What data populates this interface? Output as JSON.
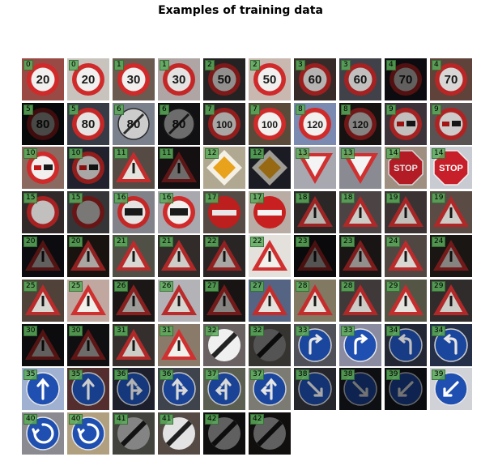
{
  "figure": {
    "title": "Examples of training data"
  },
  "samples": [
    {
      "label": "0",
      "sign": "speed-limit-20",
      "text": "20",
      "bg": "#9a4a44",
      "brightness": 1.0,
      "shape": "circle-red"
    },
    {
      "label": "0",
      "sign": "speed-limit-20",
      "text": "20",
      "bg": "#c9c3bd",
      "brightness": 1.0,
      "shape": "circle-red"
    },
    {
      "label": "1",
      "sign": "speed-limit-30",
      "text": "30",
      "bg": "#6a5a50",
      "brightness": 1.0,
      "shape": "circle-red"
    },
    {
      "label": "1",
      "sign": "speed-limit-30",
      "text": "30",
      "bg": "#b9aeae",
      "brightness": 0.95,
      "shape": "circle-red"
    },
    {
      "label": "2",
      "sign": "speed-limit-50",
      "text": "50",
      "bg": "#3d3a3a",
      "brightness": 0.6,
      "shape": "circle-red"
    },
    {
      "label": "2",
      "sign": "speed-limit-50",
      "text": "50",
      "bg": "#c8b8b0",
      "brightness": 1.0,
      "shape": "circle-red"
    },
    {
      "label": "3",
      "sign": "speed-limit-60",
      "text": "60",
      "bg": "#4a3a38",
      "brightness": 0.75,
      "shape": "circle-red"
    },
    {
      "label": "3",
      "sign": "speed-limit-60",
      "text": "60",
      "bg": "#52525c",
      "brightness": 0.8,
      "shape": "circle-red"
    },
    {
      "label": "4",
      "sign": "speed-limit-70",
      "text": "70",
      "bg": "#20202a",
      "brightness": 0.4,
      "shape": "circle-red"
    },
    {
      "label": "4",
      "sign": "speed-limit-70",
      "text": "70",
      "bg": "#6a4a40",
      "brightness": 0.9,
      "shape": "circle-red"
    },
    {
      "label": "5",
      "sign": "speed-limit-80",
      "text": "80",
      "bg": "#1a1c22",
      "brightness": 0.3,
      "shape": "circle-red"
    },
    {
      "label": "5",
      "sign": "speed-limit-80",
      "text": "80",
      "bg": "#3a3f4a",
      "brightness": 0.95,
      "shape": "circle-red"
    },
    {
      "label": "6",
      "sign": "end-speed-limit-80",
      "text": "80",
      "bg": "#9098a6",
      "brightness": 0.85,
      "shape": "circle-gray"
    },
    {
      "label": "6",
      "sign": "end-speed-limit-80",
      "text": "80",
      "bg": "#26242a",
      "brightness": 0.45,
      "shape": "circle-gray"
    },
    {
      "label": "7",
      "sign": "speed-limit-100",
      "text": "100",
      "bg": "#3a3436",
      "brightness": 0.7,
      "shape": "circle-red"
    },
    {
      "label": "7",
      "sign": "speed-limit-100",
      "text": "100",
      "bg": "#5a4a3a",
      "brightness": 1.0,
      "shape": "circle-red"
    },
    {
      "label": "8",
      "sign": "speed-limit-120",
      "text": "120",
      "bg": "#7a8ab0",
      "brightness": 1.0,
      "shape": "circle-red"
    },
    {
      "label": "8",
      "sign": "speed-limit-120",
      "text": "120",
      "bg": "#2a2222",
      "brightness": 0.55,
      "shape": "circle-red"
    },
    {
      "label": "9",
      "sign": "no-overtaking",
      "text": "",
      "bg": "#4a4048",
      "brightness": 0.8,
      "shape": "circle-red"
    },
    {
      "label": "9",
      "sign": "no-overtaking",
      "text": "",
      "bg": "#6a6262",
      "brightness": 0.85,
      "shape": "circle-red"
    },
    {
      "label": "10",
      "sign": "no-overtaking-trucks",
      "text": "",
      "bg": "#8a6a60",
      "brightness": 1.0,
      "shape": "circle-red"
    },
    {
      "label": "10",
      "sign": "no-overtaking-trucks",
      "text": "",
      "bg": "#2e3040",
      "brightness": 0.7,
      "shape": "circle-red"
    },
    {
      "label": "11",
      "sign": "right-of-way-next-intersection",
      "text": "",
      "bg": "#5a5048",
      "brightness": 0.95,
      "shape": "triangle"
    },
    {
      "label": "11",
      "sign": "right-of-way-next-intersection",
      "text": "",
      "bg": "#2e2226",
      "brightness": 0.45,
      "shape": "triangle"
    },
    {
      "label": "12",
      "sign": "priority-road",
      "text": "",
      "bg": "#b0a890",
      "brightness": 1.0,
      "shape": "diamond"
    },
    {
      "label": "12",
      "sign": "priority-road",
      "text": "",
      "bg": "#2a2c36",
      "brightness": 0.65,
      "shape": "diamond"
    },
    {
      "label": "13",
      "sign": "yield",
      "text": "",
      "bg": "#a8a8b0",
      "brightness": 1.0,
      "shape": "inverted-triangle"
    },
    {
      "label": "13",
      "sign": "yield",
      "text": "",
      "bg": "#8a8a92",
      "brightness": 1.0,
      "shape": "inverted-triangle"
    },
    {
      "label": "14",
      "sign": "stop",
      "text": "STOP",
      "bg": "#b0a090",
      "brightness": 0.9,
      "shape": "octagon"
    },
    {
      "label": "14",
      "sign": "stop",
      "text": "STOP",
      "bg": "#c8ccd2",
      "brightness": 1.0,
      "shape": "octagon"
    },
    {
      "label": "15",
      "sign": "no-vehicles",
      "text": "",
      "bg": "#3e3434",
      "brightness": 0.8,
      "shape": "circle-red"
    },
    {
      "label": "15",
      "sign": "no-vehicles",
      "text": "",
      "bg": "#6a6a70",
      "brightness": 0.5,
      "shape": "circle-red"
    },
    {
      "label": "16",
      "sign": "no-trucks",
      "text": "",
      "bg": "#8a8a92",
      "brightness": 0.95,
      "shape": "circle-red"
    },
    {
      "label": "16",
      "sign": "no-trucks",
      "text": "",
      "bg": "#a8a8ae",
      "brightness": 1.0,
      "shape": "circle-red"
    },
    {
      "label": "17",
      "sign": "no-entry",
      "text": "",
      "bg": "#5a5048",
      "brightness": 0.95,
      "shape": "no-entry"
    },
    {
      "label": "17",
      "sign": "no-entry",
      "text": "",
      "bg": "#b8aca4",
      "brightness": 1.0,
      "shape": "no-entry"
    },
    {
      "label": "18",
      "sign": "general-caution",
      "text": "",
      "bg": "#3a3434",
      "brightness": 0.75,
      "shape": "triangle"
    },
    {
      "label": "18",
      "sign": "general-caution",
      "text": "",
      "bg": "#5a5050",
      "brightness": 0.85,
      "shape": "triangle"
    },
    {
      "label": "19",
      "sign": "dangerous-curve-left",
      "text": "",
      "bg": "#4a4040",
      "brightness": 0.8,
      "shape": "triangle"
    },
    {
      "label": "19",
      "sign": "dangerous-curve-left",
      "text": "",
      "bg": "#6a5a52",
      "brightness": 0.85,
      "shape": "triangle"
    },
    {
      "label": "20",
      "sign": "dangerous-curve-right",
      "text": "",
      "bg": "#1e2028",
      "brightness": 0.4,
      "shape": "triangle"
    },
    {
      "label": "20",
      "sign": "dangerous-curve-right",
      "text": "",
      "bg": "#241c18",
      "brightness": 0.7,
      "shape": "triangle"
    },
    {
      "label": "21",
      "sign": "double-curve",
      "text": "",
      "bg": "#5a5a50",
      "brightness": 0.9,
      "shape": "triangle"
    },
    {
      "label": "21",
      "sign": "double-curve",
      "text": "",
      "bg": "#3a3432",
      "brightness": 0.85,
      "shape": "triangle"
    },
    {
      "label": "22",
      "sign": "bumpy-road",
      "text": "",
      "bg": "#3c3634",
      "brightness": 0.7,
      "shape": "triangle"
    },
    {
      "label": "22",
      "sign": "bumpy-road",
      "text": "",
      "bg": "#e4e0dc",
      "brightness": 1.0,
      "shape": "triangle"
    },
    {
      "label": "23",
      "sign": "slippery-road",
      "text": "",
      "bg": "#1e1c20",
      "brightness": 0.35,
      "shape": "triangle"
    },
    {
      "label": "23",
      "sign": "slippery-road",
      "text": "",
      "bg": "#2a2422",
      "brightness": 0.6,
      "shape": "triangle"
    },
    {
      "label": "24",
      "sign": "road-narrows-right",
      "text": "",
      "bg": "#5a504a",
      "brightness": 0.9,
      "shape": "triangle"
    },
    {
      "label": "24",
      "sign": "road-narrows-right",
      "text": "",
      "bg": "#2e2824",
      "brightness": 0.55,
      "shape": "triangle"
    },
    {
      "label": "25",
      "sign": "road-work",
      "text": "",
      "bg": "#5a4a40",
      "brightness": 0.9,
      "shape": "triangle"
    },
    {
      "label": "25",
      "sign": "road-work",
      "text": "",
      "bg": "#c0a8a0",
      "brightness": 1.0,
      "shape": "triangle"
    },
    {
      "label": "26",
      "sign": "traffic-signals",
      "text": "",
      "bg": "#2a2422",
      "brightness": 0.65,
      "shape": "triangle"
    },
    {
      "label": "26",
      "sign": "traffic-signals",
      "text": "",
      "bg": "#c8c8cc",
      "brightness": 0.9,
      "shape": "triangle"
    },
    {
      "label": "27",
      "sign": "pedestrians",
      "text": "",
      "bg": "#2e2626",
      "brightness": 0.55,
      "shape": "triangle"
    },
    {
      "label": "27",
      "sign": "pedestrians",
      "text": "",
      "bg": "#5a6a8a",
      "brightness": 0.95,
      "shape": "triangle"
    },
    {
      "label": "28",
      "sign": "children-crossing",
      "text": "",
      "bg": "#8a8068",
      "brightness": 0.95,
      "shape": "triangle"
    },
    {
      "label": "28",
      "sign": "children-crossing",
      "text": "",
      "bg": "#4a4444",
      "brightness": 0.85,
      "shape": "triangle"
    },
    {
      "label": "29",
      "sign": "bicycles-crossing",
      "text": "",
      "bg": "#5a5a4a",
      "brightness": 0.95,
      "shape": "triangle"
    },
    {
      "label": "29",
      "sign": "bicycles-crossing",
      "text": "",
      "bg": "#3a3434",
      "brightness": 0.85,
      "shape": "triangle"
    },
    {
      "label": "30",
      "sign": "beware-ice-snow",
      "text": "",
      "bg": "#1e1c22",
      "brightness": 0.4,
      "shape": "triangle"
    },
    {
      "label": "30",
      "sign": "beware-ice-snow",
      "text": "",
      "bg": "#222026",
      "brightness": 0.45,
      "shape": "triangle"
    },
    {
      "label": "31",
      "sign": "wild-animals-crossing",
      "text": "",
      "bg": "#3e3836",
      "brightness": 0.85,
      "shape": "triangle"
    },
    {
      "label": "31",
      "sign": "wild-animals-crossing",
      "text": "",
      "bg": "#8a7a6a",
      "brightness": 1.0,
      "shape": "triangle"
    },
    {
      "label": "32",
      "sign": "end-all-limits",
      "text": "",
      "bg": "#6a6262",
      "brightness": 1.0,
      "shape": "end-limits"
    },
    {
      "label": "32",
      "sign": "end-all-limits",
      "text": "",
      "bg": "#9a968e",
      "brightness": 0.35,
      "shape": "end-limits"
    },
    {
      "label": "33",
      "sign": "turn-right-ahead",
      "text": "",
      "bg": "#5a5a62",
      "brightness": 0.9,
      "shape": "circle-blue"
    },
    {
      "label": "33",
      "sign": "turn-right-ahead",
      "text": "",
      "bg": "#8a8aa0",
      "brightness": 1.0,
      "shape": "circle-blue"
    },
    {
      "label": "34",
      "sign": "turn-left-ahead",
      "text": "",
      "bg": "#2e3444",
      "brightness": 0.75,
      "shape": "circle-blue"
    },
    {
      "label": "34",
      "sign": "turn-left-ahead",
      "text": "",
      "bg": "#2a3550",
      "brightness": 0.9,
      "shape": "circle-blue"
    },
    {
      "label": "35",
      "sign": "ahead-only",
      "text": "",
      "bg": "#a0b0d0",
      "brightness": 1.0,
      "shape": "circle-blue"
    },
    {
      "label": "35",
      "sign": "ahead-only",
      "text": "",
      "bg": "#6a3a3a",
      "brightness": 0.8,
      "shape": "circle-blue"
    },
    {
      "label": "36",
      "sign": "go-straight-or-right",
      "text": "",
      "bg": "#2a2e40",
      "brightness": 0.7,
      "shape": "circle-blue"
    },
    {
      "label": "36",
      "sign": "go-straight-or-right",
      "text": "",
      "bg": "#4a505a",
      "brightness": 0.85,
      "shape": "circle-blue"
    },
    {
      "label": "37",
      "sign": "go-straight-or-left",
      "text": "",
      "bg": "#6a7060",
      "brightness": 0.85,
      "shape": "circle-blue"
    },
    {
      "label": "37",
      "sign": "go-straight-or-left",
      "text": "",
      "bg": "#8a8a80",
      "brightness": 0.9,
      "shape": "circle-blue"
    },
    {
      "label": "38",
      "sign": "keep-right",
      "text": "",
      "bg": "#3a3a44",
      "brightness": 0.65,
      "shape": "circle-blue"
    },
    {
      "label": "38",
      "sign": "keep-right",
      "text": "",
      "bg": "#20222a",
      "brightness": 0.45,
      "shape": "circle-blue"
    },
    {
      "label": "39",
      "sign": "keep-left",
      "text": "",
      "bg": "#1a1c24",
      "brightness": 0.45,
      "shape": "circle-blue"
    },
    {
      "label": "39",
      "sign": "keep-left",
      "text": "",
      "bg": "#d0d2d8",
      "brightness": 1.0,
      "shape": "circle-blue"
    },
    {
      "label": "40",
      "sign": "roundabout-mandatory",
      "text": "",
      "bg": "#8a8a90",
      "brightness": 1.0,
      "shape": "circle-blue"
    },
    {
      "label": "40",
      "sign": "roundabout-mandatory",
      "text": "",
      "bg": "#b0a080",
      "brightness": 1.0,
      "shape": "circle-blue"
    },
    {
      "label": "41",
      "sign": "end-no-passing",
      "text": "",
      "bg": "#7a7a70",
      "brightness": 0.55,
      "shape": "end-limits"
    },
    {
      "label": "41",
      "sign": "end-no-passing",
      "text": "",
      "bg": "#5a5048",
      "brightness": 0.95,
      "shape": "end-limits"
    },
    {
      "label": "42",
      "sign": "end-no-passing-trucks",
      "text": "",
      "bg": "#2a2626",
      "brightness": 0.4,
      "shape": "end-limits"
    },
    {
      "label": "42",
      "sign": "end-no-passing-trucks",
      "text": "",
      "bg": "#2c2622",
      "brightness": 0.4,
      "shape": "end-limits"
    }
  ]
}
